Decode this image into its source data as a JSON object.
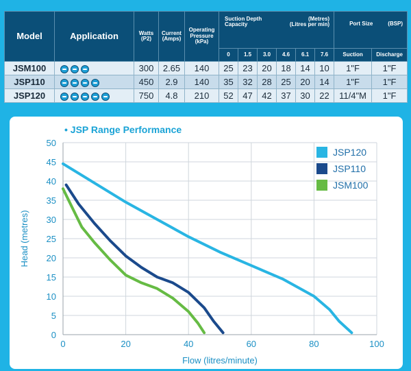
{
  "table": {
    "headers": {
      "model": "Model",
      "application": "Application",
      "watts": "Watts",
      "watts_unit": "(P2)",
      "current": "Current",
      "current_unit": "(Amps)",
      "pressure_1": "Operating",
      "pressure_2": "Pressure",
      "pressure_unit": "(kPa)",
      "depth_1": "Suction Depth",
      "depth_2": "Capacity",
      "depth_unit_1": "(Metres)",
      "depth_unit_2": "(Litres per min)",
      "port": "Port Size",
      "port_unit": "(BSP)",
      "depths": [
        "0",
        "1.5",
        "3.0",
        "4.6",
        "6.1",
        "7.6"
      ],
      "suction": "Suction",
      "discharge": "Discharge"
    },
    "rows": [
      {
        "model": "JSM100",
        "icons": 3,
        "watts": "300",
        "current": "2.65",
        "pressure": "140",
        "caps": [
          "25",
          "23",
          "20",
          "18",
          "14",
          "10"
        ],
        "suction": "1\"F",
        "discharge": "1\"F"
      },
      {
        "model": "JSP110",
        "icons": 4,
        "watts": "450",
        "current": "2.9",
        "pressure": "140",
        "caps": [
          "35",
          "32",
          "28",
          "25",
          "20",
          "14"
        ],
        "suction": "1\"F",
        "discharge": "1\"F"
      },
      {
        "model": "JSP120",
        "icons": 5,
        "watts": "750",
        "current": "4.8",
        "pressure": "210",
        "caps": [
          "52",
          "47",
          "42",
          "37",
          "30",
          "22"
        ],
        "suction": "11/4\"M",
        "discharge": "1\"F"
      }
    ],
    "icon_name": "pump-application-icon"
  },
  "chart_data": {
    "type": "line",
    "title": "• JSP Range Performance",
    "xlabel": "Flow (litres/minute)",
    "ylabel": "Head (metres)",
    "xlim": [
      0,
      100
    ],
    "ylim": [
      0,
      50
    ],
    "x_ticks": [
      0,
      20,
      40,
      60,
      80,
      100
    ],
    "y_ticks": [
      0,
      5,
      10,
      15,
      20,
      25,
      30,
      35,
      40,
      45,
      50
    ],
    "grid": true,
    "legend_position": "top-right",
    "series": [
      {
        "name": "JSP120",
        "color": "#29b5e3",
        "points": [
          [
            0,
            44.5
          ],
          [
            10,
            39.5
          ],
          [
            20,
            34.5
          ],
          [
            30,
            30
          ],
          [
            40,
            25.5
          ],
          [
            50,
            21.5
          ],
          [
            60,
            18
          ],
          [
            70,
            14.5
          ],
          [
            80,
            10
          ],
          [
            85,
            6.5
          ],
          [
            88,
            3.5
          ],
          [
            92,
            0.5
          ]
        ]
      },
      {
        "name": "JSP110",
        "color": "#1b4a8c",
        "points": [
          [
            1,
            39
          ],
          [
            5,
            34
          ],
          [
            10,
            29
          ],
          [
            15,
            24.5
          ],
          [
            20,
            20.5
          ],
          [
            25,
            17.5
          ],
          [
            30,
            15
          ],
          [
            35,
            13.5
          ],
          [
            40,
            11
          ],
          [
            45,
            7
          ],
          [
            48,
            3.5
          ],
          [
            51,
            0.5
          ]
        ]
      },
      {
        "name": "JSM100",
        "color": "#66bb44",
        "points": [
          [
            0,
            38
          ],
          [
            3,
            33
          ],
          [
            6,
            28
          ],
          [
            10,
            24
          ],
          [
            15,
            19.5
          ],
          [
            20,
            15.5
          ],
          [
            25,
            13.5
          ],
          [
            30,
            12
          ],
          [
            35,
            9.5
          ],
          [
            40,
            6
          ],
          [
            43,
            3
          ],
          [
            45,
            0.5
          ]
        ]
      }
    ]
  }
}
